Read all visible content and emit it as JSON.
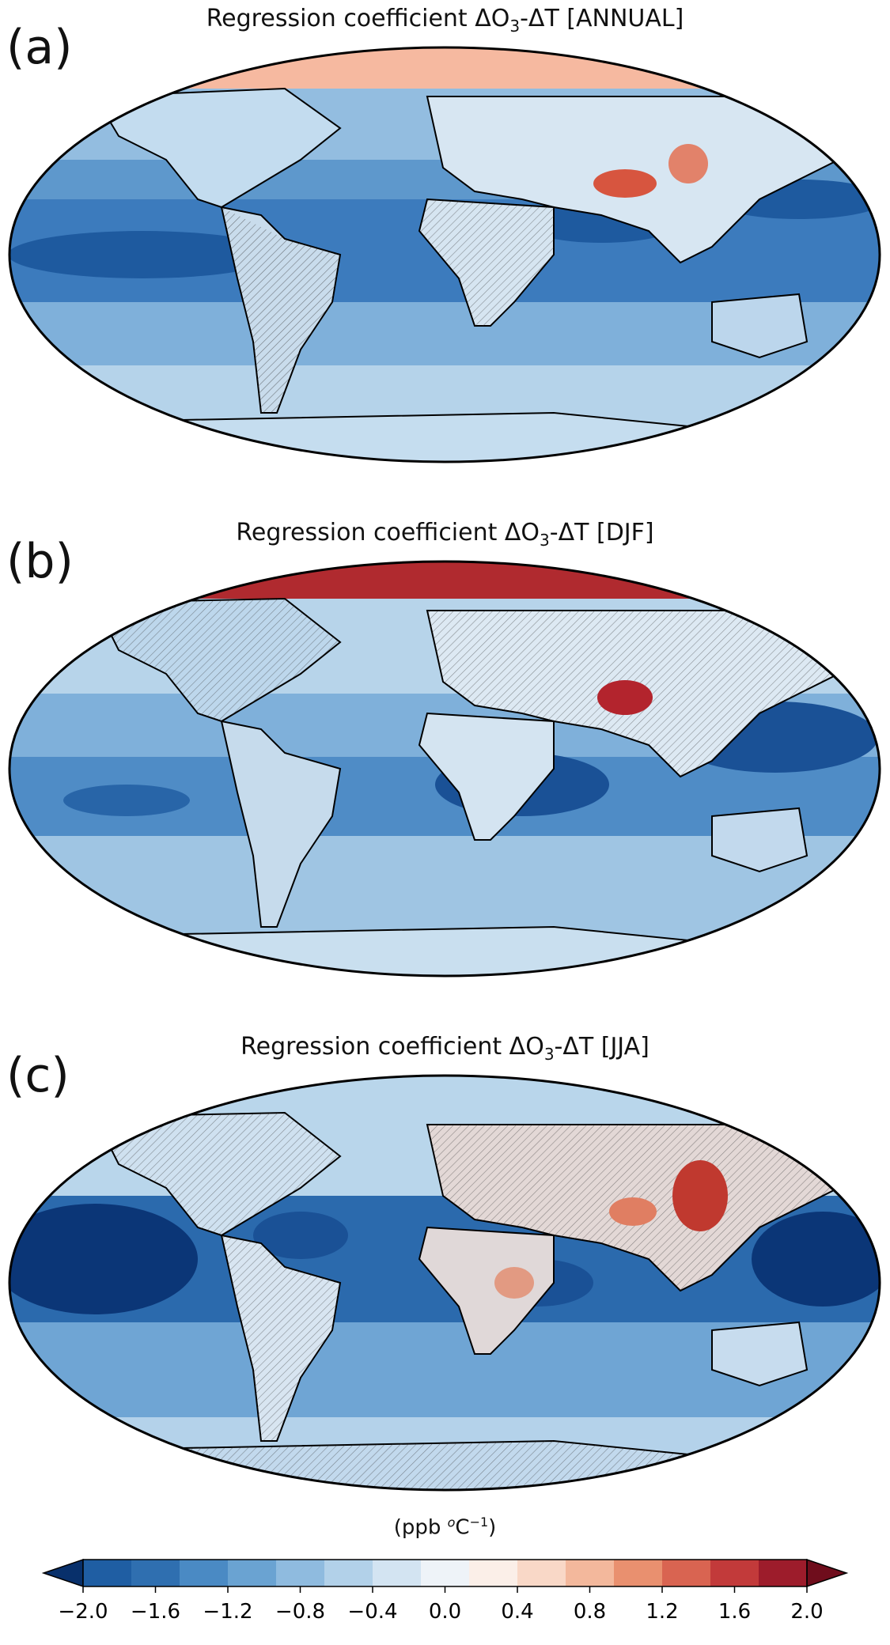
{
  "panels": [
    {
      "letter": "(a)",
      "title_prefix": "Regression coefficient ΔO",
      "title_sub": "3",
      "title_suffix": "-ΔT [ANNUAL]"
    },
    {
      "letter": "(b)",
      "title_prefix": "Regression coefficient ΔO",
      "title_sub": "3",
      "title_suffix": "-ΔT [DJF]"
    },
    {
      "letter": "(c)",
      "title_prefix": "Regression coefficient ΔO",
      "title_sub": "3",
      "title_suffix": "-ΔT [JJA]"
    }
  ],
  "colorbar": {
    "label_prefix": "(ppb ",
    "label_sup1": "o",
    "label_mid": "C",
    "label_sup2": "−1",
    "label_suffix": ")",
    "ticks": [
      "−2.0",
      "−1.6",
      "−1.2",
      "−0.8",
      "−0.4",
      "0.0",
      "0.4",
      "0.8",
      "1.2",
      "1.6",
      "2.0"
    ],
    "colors": [
      "#08306b",
      "#1f5ea3",
      "#2f6fb0",
      "#4a8ac4",
      "#6aa3d2",
      "#8fbbdf",
      "#b2d1e9",
      "#d3e4f2",
      "#eef3f8",
      "#fbefe8",
      "#f9d8c7",
      "#f3b89c",
      "#e9906f",
      "#d96451",
      "#c23a3a",
      "#9d1c2b",
      "#6f0d1c"
    ]
  }
}
